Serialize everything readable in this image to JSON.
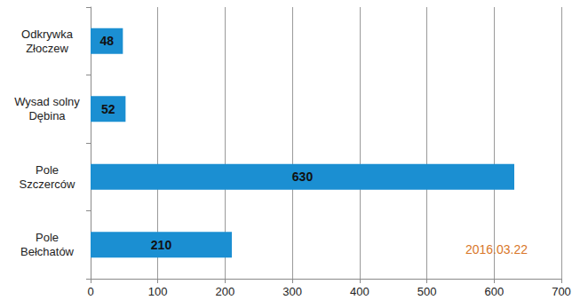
{
  "chart_data": {
    "type": "bar",
    "orientation": "horizontal",
    "categories": [
      "Odkrywka Złoczew",
      "Wysad solny Dębina",
      "Pole Szczerców",
      "Pole Bełchatów"
    ],
    "values": [
      48,
      52,
      630,
      210
    ],
    "color": "#1b8fd2",
    "xlim": [
      0,
      700
    ],
    "xticks": [
      0,
      100,
      200,
      300,
      400,
      500,
      600,
      700
    ],
    "grid": true,
    "data_labels": true,
    "annotations": [
      "2016.03.22"
    ]
  }
}
